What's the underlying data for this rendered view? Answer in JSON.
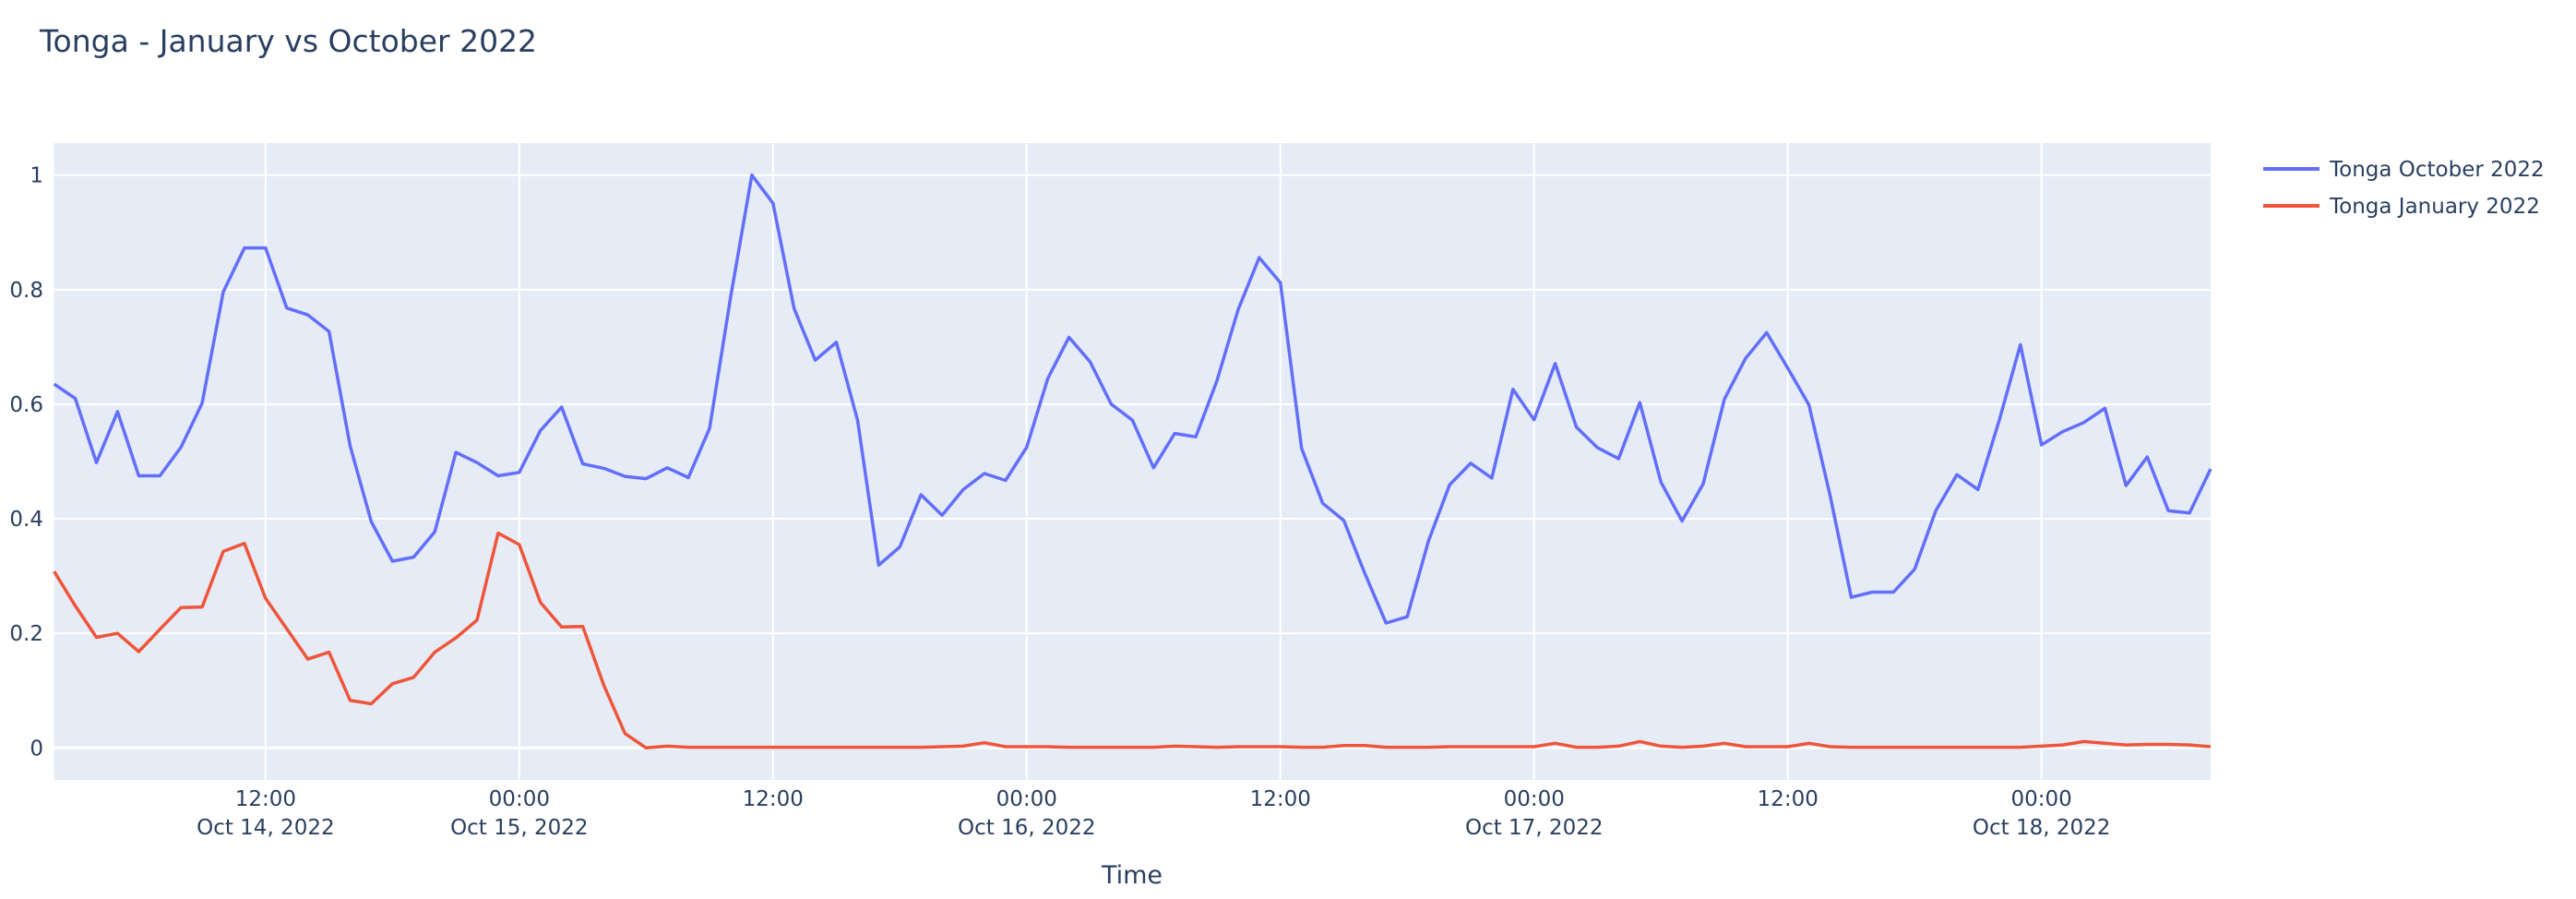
{
  "chart_data": {
    "type": "line",
    "title": "Tonga - January vs October 2022",
    "xlabel": "Time",
    "ylabel": "",
    "ylim": [
      -0.056,
      1.056
    ],
    "yticks": [
      0,
      0.2,
      0.4,
      0.6,
      0.8,
      1
    ],
    "ytick_labels": [
      "0",
      "0.2",
      "0.4",
      "0.6",
      "0.8",
      "1"
    ],
    "grid": true,
    "legend_position": "top-right",
    "background": "#E5ECF6",
    "xticks": [
      {
        "t": "2022-10-14T12:00",
        "label": "12:00",
        "sub": "Oct 14, 2022"
      },
      {
        "t": "2022-10-15T00:00",
        "label": "00:00",
        "sub": "Oct 15, 2022"
      },
      {
        "t": "2022-10-15T12:00",
        "label": "12:00",
        "sub": ""
      },
      {
        "t": "2022-10-16T00:00",
        "label": "00:00",
        "sub": "Oct 16, 2022"
      },
      {
        "t": "2022-10-16T12:00",
        "label": "12:00",
        "sub": ""
      },
      {
        "t": "2022-10-17T00:00",
        "label": "00:00",
        "sub": "Oct 17, 2022"
      },
      {
        "t": "2022-10-17T12:00",
        "label": "12:00",
        "sub": ""
      },
      {
        "t": "2022-10-18T00:00",
        "label": "00:00",
        "sub": "Oct 18, 2022"
      }
    ],
    "xlim": [
      "2022-10-14T02:00",
      "2022-10-18T08:00"
    ],
    "x": [
      "2022-10-14T02:00",
      "2022-10-14T03:00",
      "2022-10-14T04:00",
      "2022-10-14T05:00",
      "2022-10-14T06:00",
      "2022-10-14T07:00",
      "2022-10-14T08:00",
      "2022-10-14T09:00",
      "2022-10-14T10:00",
      "2022-10-14T11:00",
      "2022-10-14T12:00",
      "2022-10-14T13:00",
      "2022-10-14T14:00",
      "2022-10-14T15:00",
      "2022-10-14T16:00",
      "2022-10-14T17:00",
      "2022-10-14T18:00",
      "2022-10-14T19:00",
      "2022-10-14T20:00",
      "2022-10-14T21:00",
      "2022-10-14T22:00",
      "2022-10-14T23:00",
      "2022-10-15T00:00",
      "2022-10-15T01:00",
      "2022-10-15T02:00",
      "2022-10-15T03:00",
      "2022-10-15T04:00",
      "2022-10-15T05:00",
      "2022-10-15T06:00",
      "2022-10-15T07:00",
      "2022-10-15T08:00",
      "2022-10-15T09:00",
      "2022-10-15T10:00",
      "2022-10-15T11:00",
      "2022-10-15T12:00",
      "2022-10-15T13:00",
      "2022-10-15T14:00",
      "2022-10-15T15:00",
      "2022-10-15T16:00",
      "2022-10-15T17:00",
      "2022-10-15T18:00",
      "2022-10-15T19:00",
      "2022-10-15T20:00",
      "2022-10-15T21:00",
      "2022-10-15T22:00",
      "2022-10-15T23:00",
      "2022-10-16T00:00",
      "2022-10-16T01:00",
      "2022-10-16T02:00",
      "2022-10-16T03:00",
      "2022-10-16T04:00",
      "2022-10-16T05:00",
      "2022-10-16T06:00",
      "2022-10-16T07:00",
      "2022-10-16T08:00",
      "2022-10-16T09:00",
      "2022-10-16T10:00",
      "2022-10-16T11:00",
      "2022-10-16T12:00",
      "2022-10-16T13:00",
      "2022-10-16T14:00",
      "2022-10-16T15:00",
      "2022-10-16T16:00",
      "2022-10-16T17:00",
      "2022-10-16T18:00",
      "2022-10-16T19:00",
      "2022-10-16T20:00",
      "2022-10-16T21:00",
      "2022-10-16T22:00",
      "2022-10-16T23:00",
      "2022-10-17T00:00",
      "2022-10-17T01:00",
      "2022-10-17T02:00",
      "2022-10-17T03:00",
      "2022-10-17T04:00",
      "2022-10-17T05:00",
      "2022-10-17T06:00",
      "2022-10-17T07:00",
      "2022-10-17T08:00",
      "2022-10-17T09:00",
      "2022-10-17T10:00",
      "2022-10-17T11:00",
      "2022-10-17T12:00",
      "2022-10-17T13:00",
      "2022-10-17T14:00",
      "2022-10-17T15:00",
      "2022-10-17T16:00",
      "2022-10-17T17:00",
      "2022-10-17T18:00",
      "2022-10-17T19:00",
      "2022-10-17T20:00",
      "2022-10-17T21:00",
      "2022-10-17T22:00",
      "2022-10-17T23:00",
      "2022-10-18T00:00",
      "2022-10-18T01:00",
      "2022-10-18T02:00",
      "2022-10-18T03:00",
      "2022-10-18T04:00",
      "2022-10-18T05:00",
      "2022-10-18T06:00",
      "2022-10-18T07:00",
      "2022-10-18T08:00"
    ],
    "series": [
      {
        "name": "Tonga October 2022",
        "color": "#636EFA",
        "values": [
          0.635,
          0.61,
          0.498,
          0.587,
          0.475,
          0.475,
          0.525,
          0.602,
          0.796,
          0.873,
          0.873,
          0.768,
          0.756,
          0.727,
          0.527,
          0.395,
          0.326,
          0.333,
          0.377,
          0.516,
          0.498,
          0.475,
          0.481,
          0.554,
          0.595,
          0.496,
          0.488,
          0.474,
          0.47,
          0.489,
          0.472,
          0.558,
          0.788,
          1.0,
          0.951,
          0.767,
          0.677,
          0.708,
          0.572,
          0.319,
          0.351,
          0.442,
          0.406,
          0.451,
          0.479,
          0.467,
          0.525,
          0.645,
          0.717,
          0.674,
          0.6,
          0.572,
          0.489,
          0.549,
          0.543,
          0.641,
          0.765,
          0.856,
          0.812,
          0.523,
          0.427,
          0.397,
          0.304,
          0.218,
          0.229,
          0.361,
          0.459,
          0.497,
          0.471,
          0.626,
          0.573,
          0.671,
          0.56,
          0.524,
          0.505,
          0.603,
          0.464,
          0.396,
          0.461,
          0.609,
          0.68,
          0.725,
          0.663,
          0.599,
          0.441,
          0.263,
          0.272,
          0.272,
          0.312,
          0.414,
          0.477,
          0.451,
          0.572,
          0.704,
          0.529,
          0.552,
          0.568,
          0.593,
          0.458,
          0.508,
          0.414,
          0.41,
          0.487
        ]
      },
      {
        "name": "Tonga January 2022",
        "color": "#EF553B",
        "values": [
          0.308,
          0.248,
          0.193,
          0.2,
          0.168,
          0.207,
          0.245,
          0.246,
          0.343,
          0.357,
          0.261,
          0.208,
          0.155,
          0.167,
          0.083,
          0.077,
          0.112,
          0.123,
          0.167,
          0.192,
          0.223,
          0.375,
          0.355,
          0.254,
          0.211,
          0.212,
          0.109,
          0.025,
          0.0,
          0.003,
          0.001,
          0.001,
          0.001,
          0.001,
          0.001,
          0.001,
          0.001,
          0.001,
          0.001,
          0.001,
          0.001,
          0.001,
          0.002,
          0.003,
          0.009,
          0.002,
          0.002,
          0.002,
          0.001,
          0.001,
          0.001,
          0.001,
          0.001,
          0.003,
          0.002,
          0.001,
          0.002,
          0.002,
          0.002,
          0.001,
          0.001,
          0.004,
          0.004,
          0.001,
          0.001,
          0.001,
          0.002,
          0.002,
          0.002,
          0.002,
          0.002,
          0.008,
          0.001,
          0.001,
          0.003,
          0.011,
          0.003,
          0.001,
          0.003,
          0.008,
          0.002,
          0.002,
          0.002,
          0.008,
          0.002,
          0.001,
          0.001,
          0.001,
          0.001,
          0.001,
          0.001,
          0.001,
          0.001,
          0.001,
          0.003,
          0.005,
          0.011,
          0.008,
          0.005,
          0.006,
          0.006,
          0.005,
          0.002
        ]
      }
    ]
  }
}
